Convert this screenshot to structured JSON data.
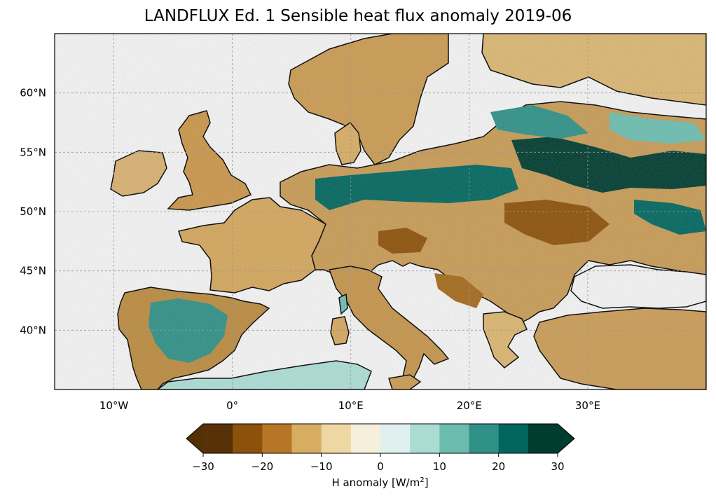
{
  "title": "LANDFLUX Ed. 1 Sensible heat flux anomaly 2019-06",
  "map": {
    "extent": {
      "lon": [
        -15,
        40
      ],
      "lat": [
        35,
        65
      ]
    },
    "lon_ticks": [
      {
        "lon": -10,
        "label": "10°W"
      },
      {
        "lon": 0,
        "label": "0°"
      },
      {
        "lon": 10,
        "label": "10°E"
      },
      {
        "lon": 20,
        "label": "20°E"
      },
      {
        "lon": 30,
        "label": "30°E"
      }
    ],
    "lat_ticks": [
      {
        "lat": 40,
        "label": "40°N"
      },
      {
        "lat": 45,
        "label": "45°N"
      },
      {
        "lat": 50,
        "label": "50°N"
      },
      {
        "lat": 55,
        "label": "55°N"
      },
      {
        "lat": 60,
        "label": "60°N"
      }
    ],
    "ocean_color": "#f2f2f2",
    "coast_color": "#000000"
  },
  "colorbar": {
    "label_main": "H anomaly [W/m",
    "label_sup": "2",
    "label_end": "]",
    "min": -30,
    "max": 30,
    "ticks": [
      "−30",
      "−20",
      "−10",
      "0",
      "10",
      "20",
      "30"
    ],
    "colors": [
      "#573208",
      "#8c510a",
      "#b77625",
      "#d6ad61",
      "#eed7a2",
      "#f5efdc",
      "#dff0ee",
      "#abdcd4",
      "#6bbcaf",
      "#2f9087",
      "#02665e",
      "#003c30"
    ],
    "extend_low": "#543005",
    "extend_high": "#003c30"
  }
}
